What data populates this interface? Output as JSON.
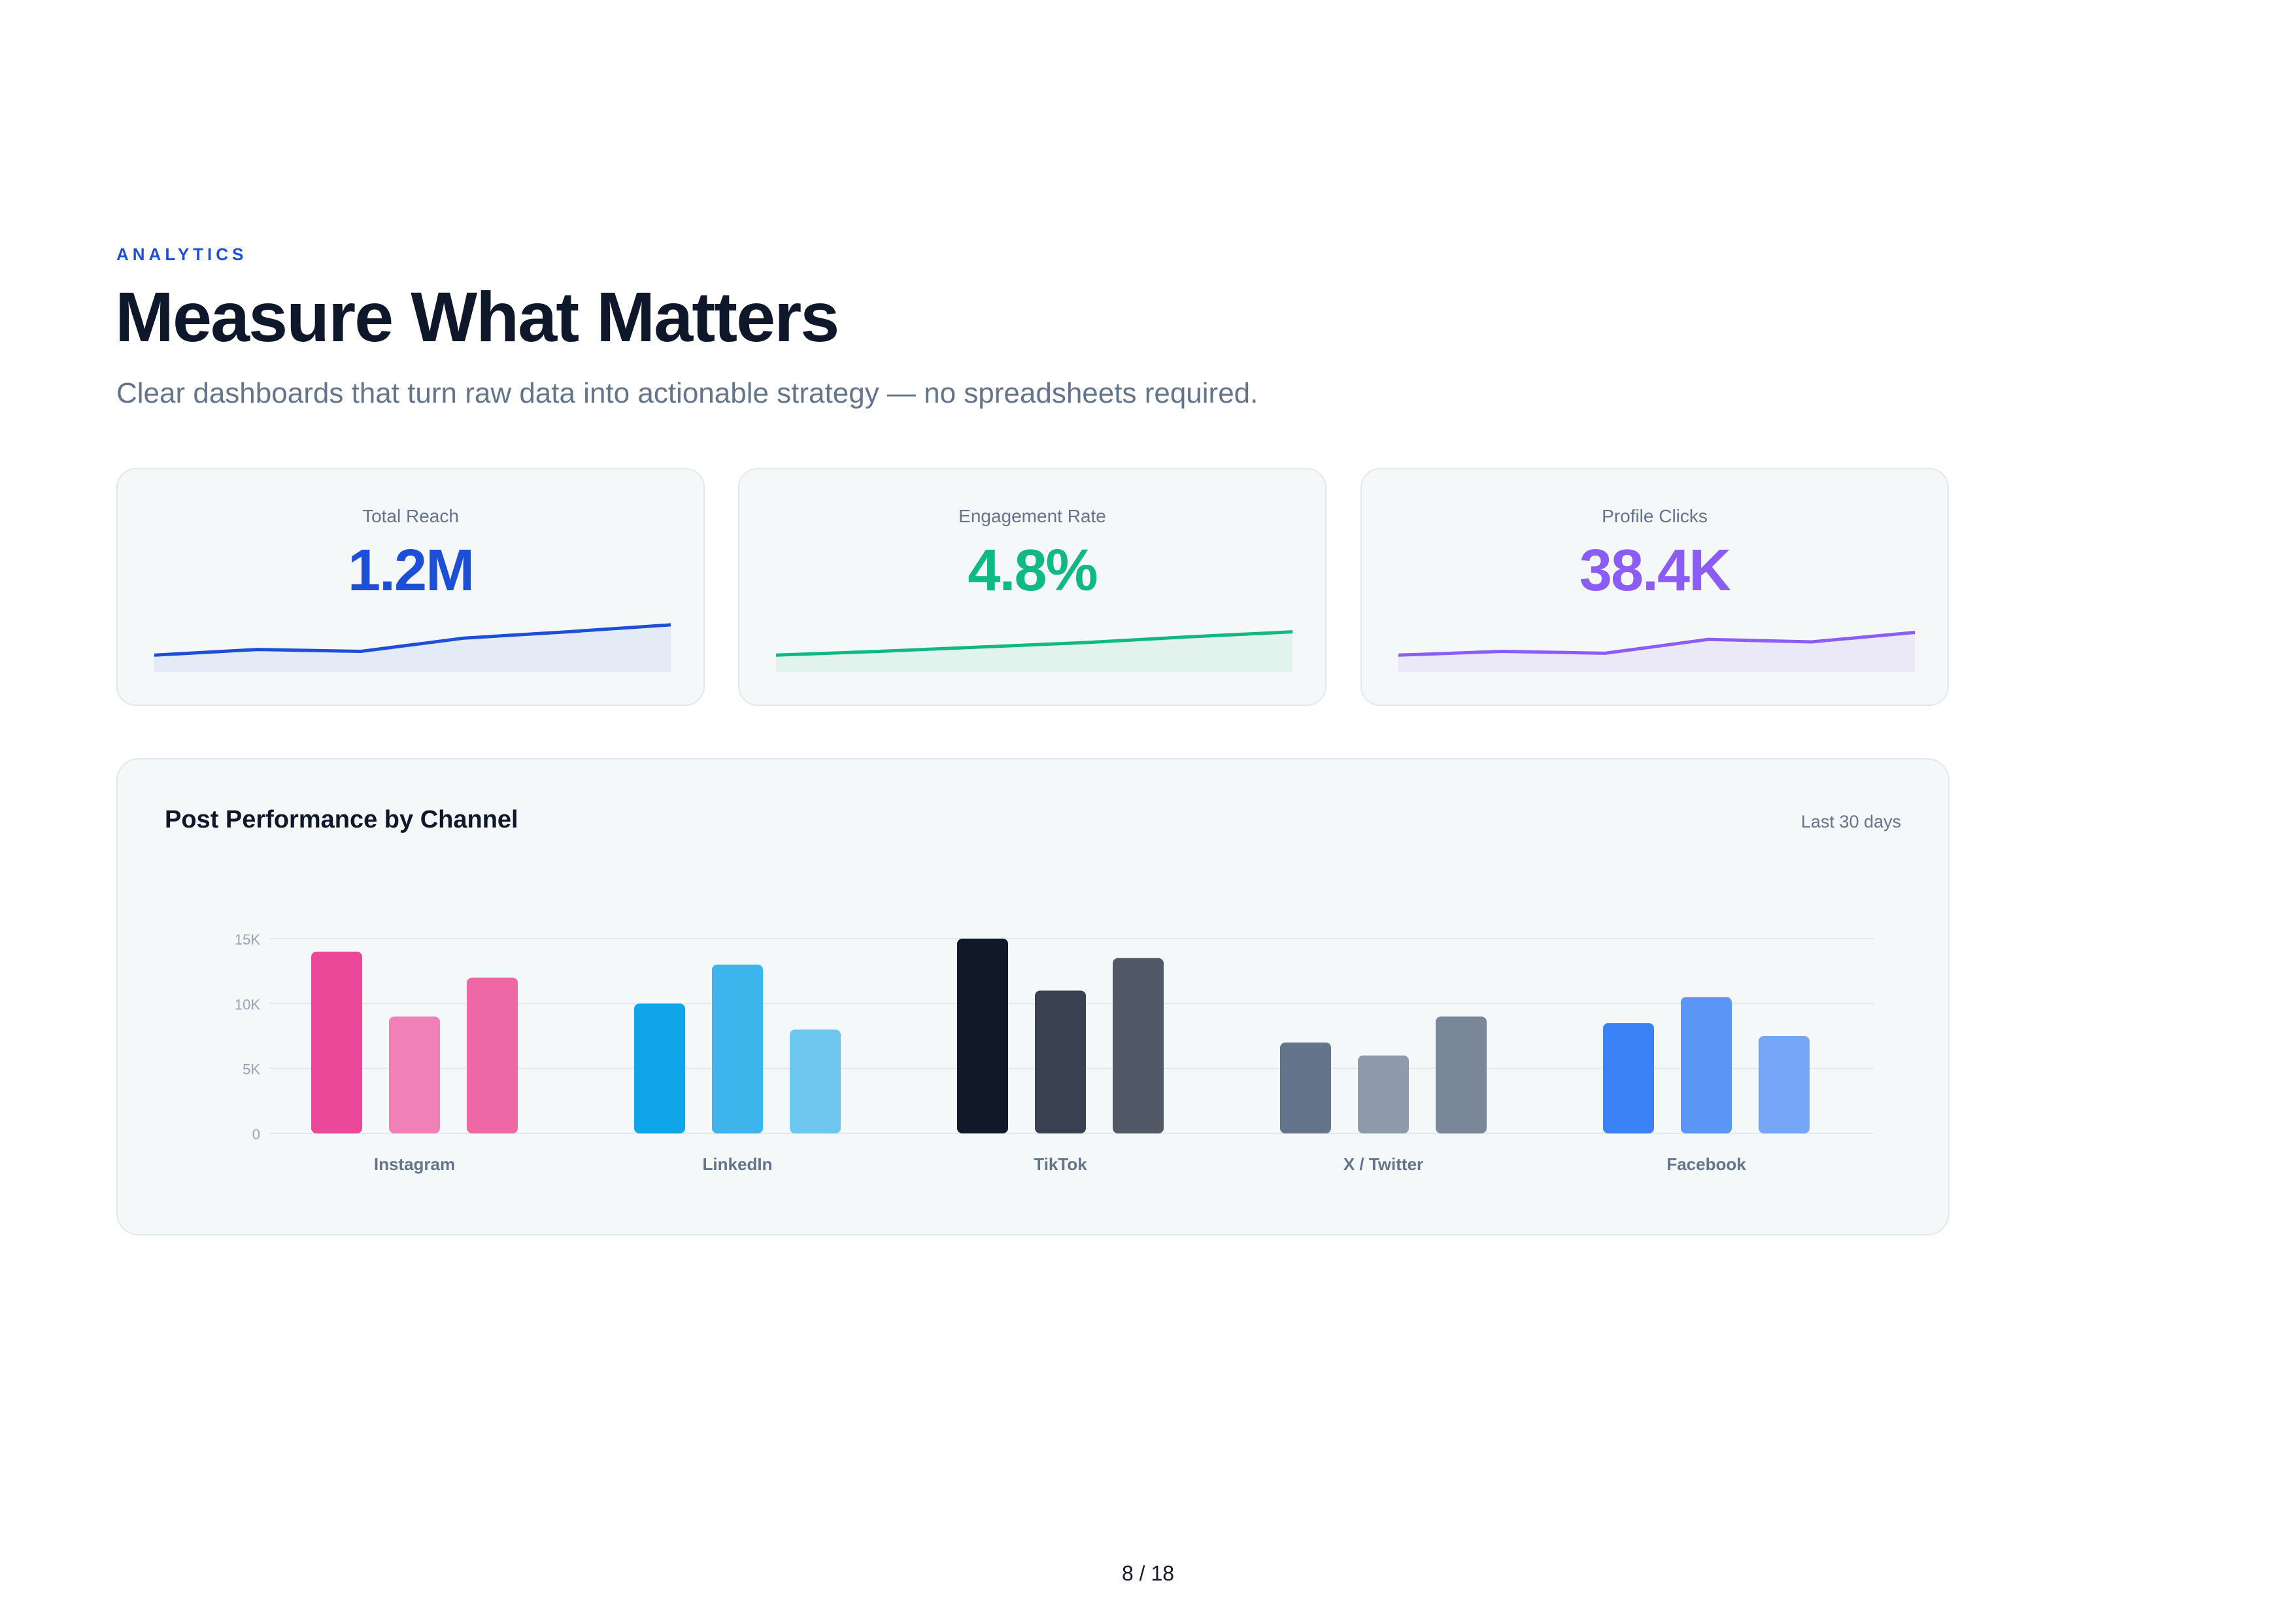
{
  "header": {
    "eyebrow": "ANALYTICS",
    "title": "Measure What Matters",
    "subtitle": "Clear dashboards that turn raw data into actionable strategy — no spreadsheets required."
  },
  "kpis": [
    {
      "label": "Total Reach",
      "value": "1.2M",
      "color": "#1d4ed8",
      "fill": "#e4ebf7",
      "trend": [
        1.0,
        1.9,
        1.6,
        3.7,
        4.7,
        5.8
      ]
    },
    {
      "label": "Engagement Rate",
      "value": "4.8%",
      "color": "#10b981",
      "fill": "#e2f3ee",
      "trend": [
        1.0,
        1.6,
        2.3,
        3.0,
        3.9,
        4.7
      ]
    },
    {
      "label": "Profile Clicks",
      "value": "38.4K",
      "color": "#8b5cf6",
      "fill": "#ebe8f7",
      "trend": [
        1.0,
        1.6,
        1.3,
        3.5,
        3.1,
        4.6
      ]
    }
  ],
  "chart_card": {
    "title": "Post Performance by Channel",
    "period": "Last 30 days"
  },
  "chart_data": {
    "type": "bar",
    "categories": [
      "Instagram",
      "LinkedIn",
      "TikTok",
      "X / Twitter",
      "Facebook"
    ],
    "values": [
      [
        14000,
        9000,
        12000
      ],
      [
        10000,
        13000,
        8000
      ],
      [
        15000,
        11000,
        13500
      ],
      [
        7000,
        6000,
        9000
      ],
      [
        8500,
        10500,
        7500
      ]
    ],
    "colors": [
      [
        "#ec4899",
        "#f081b6",
        "#ef68a6"
      ],
      [
        "#0ea5e9",
        "#3db4ec",
        "#6dc7ef"
      ],
      [
        "#111827",
        "#3a4150",
        "#525966"
      ],
      [
        "#64748b",
        "#8f9aab",
        "#7a8799"
      ],
      [
        "#3b82f6",
        "#5b96f6",
        "#75a5f6"
      ]
    ],
    "y_ticks": [
      {
        "value": 0,
        "label": "0"
      },
      {
        "value": 5000,
        "label": "5K"
      },
      {
        "value": 10000,
        "label": "10K"
      },
      {
        "value": 15000,
        "label": "15K"
      }
    ],
    "ylim": [
      0,
      15000
    ],
    "grid": true
  },
  "footer": {
    "page_number": "8 / 18"
  }
}
